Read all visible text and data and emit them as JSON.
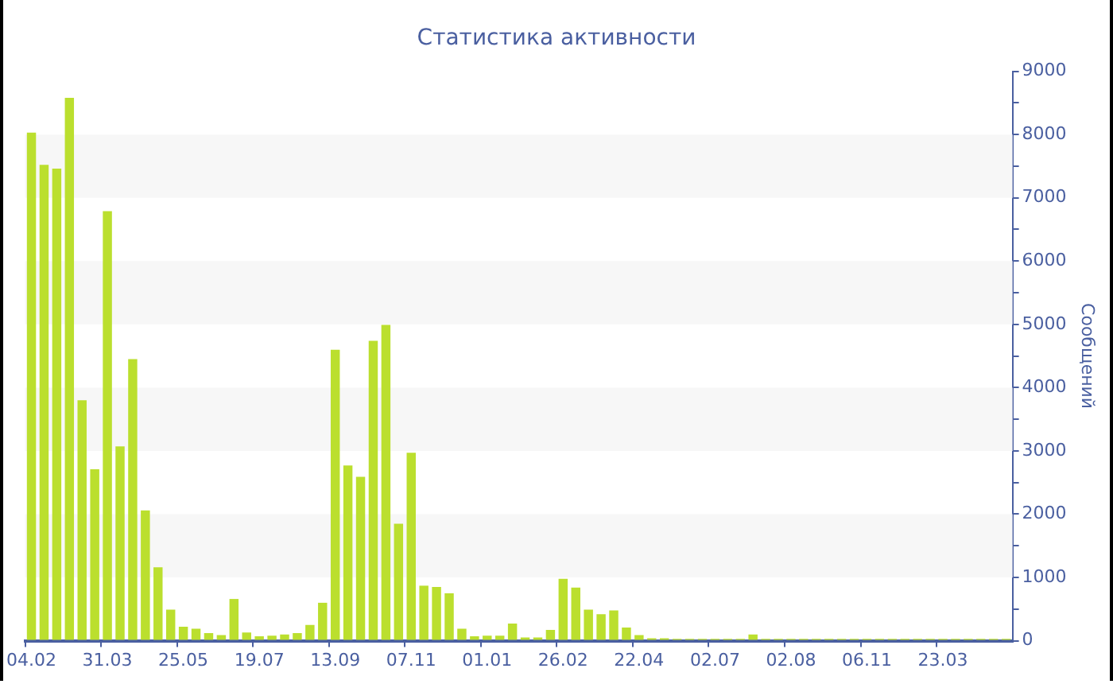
{
  "chart_data": {
    "type": "bar",
    "title": "Статистика активности",
    "ylabel": "Сообщений",
    "categories": [
      "04.02",
      null,
      null,
      null,
      null,
      null,
      "31.03",
      null,
      null,
      null,
      null,
      null,
      "25.05",
      null,
      null,
      null,
      null,
      null,
      "19.07",
      null,
      null,
      null,
      null,
      null,
      "13.09",
      null,
      null,
      null,
      null,
      null,
      "07.11",
      null,
      null,
      null,
      null,
      null,
      "01.01",
      null,
      null,
      null,
      null,
      null,
      "26.02",
      null,
      null,
      null,
      null,
      null,
      "22.04",
      null,
      null,
      null,
      null,
      null,
      "02.07",
      null,
      null,
      null,
      null,
      null,
      "02.08",
      null,
      null,
      null,
      null,
      null,
      "06.11",
      null,
      null,
      null,
      null,
      null,
      "23.03",
      null,
      null,
      null,
      null,
      null
    ],
    "values": [
      8030,
      7520,
      7460,
      8580,
      3800,
      2710,
      6790,
      3070,
      4450,
      2060,
      1160,
      490,
      220,
      190,
      120,
      90,
      660,
      130,
      70,
      80,
      100,
      120,
      250,
      600,
      4600,
      2770,
      2590,
      4740,
      4990,
      1850,
      2970,
      870,
      850,
      750,
      190,
      70,
      80,
      80,
      270,
      50,
      50,
      170,
      980,
      840,
      490,
      420,
      480,
      210,
      90,
      40,
      40,
      30,
      30,
      30,
      30,
      30,
      30,
      100,
      30,
      30,
      30,
      30,
      30,
      30,
      30,
      30,
      30,
      30,
      30,
      30,
      30,
      30,
      30,
      30,
      30,
      30,
      30,
      30
    ],
    "color": "#bbdf2e",
    "ylim": [
      0,
      9000
    ],
    "yticks": [
      0,
      {
        "value": 500,
        "label": null
      },
      1000,
      {
        "value": 1500,
        "label": null
      },
      2000,
      {
        "value": 2500,
        "label": null
      },
      3000,
      {
        "value": 3500,
        "label": null
      },
      4000,
      {
        "value": 4500,
        "label": null
      },
      5000,
      {
        "value": 5500,
        "label": null
      },
      6000,
      {
        "value": 6500,
        "label": null
      },
      7000,
      {
        "value": 7500,
        "label": null
      },
      8000,
      {
        "value": 8500,
        "label": null
      },
      9000
    ],
    "bands": [
      {
        "axis": "y",
        "from": 1000,
        "to": 2000,
        "color": "#f7f7f7"
      },
      {
        "axis": "y",
        "from": 3000,
        "to": 4000,
        "color": "#f7f7f7"
      },
      {
        "axis": "y",
        "from": 5000,
        "to": 6000,
        "color": "#f7f7f7"
      },
      {
        "axis": "y",
        "from": 7000,
        "to": 8000,
        "color": "#f7f7f7"
      }
    ]
  }
}
